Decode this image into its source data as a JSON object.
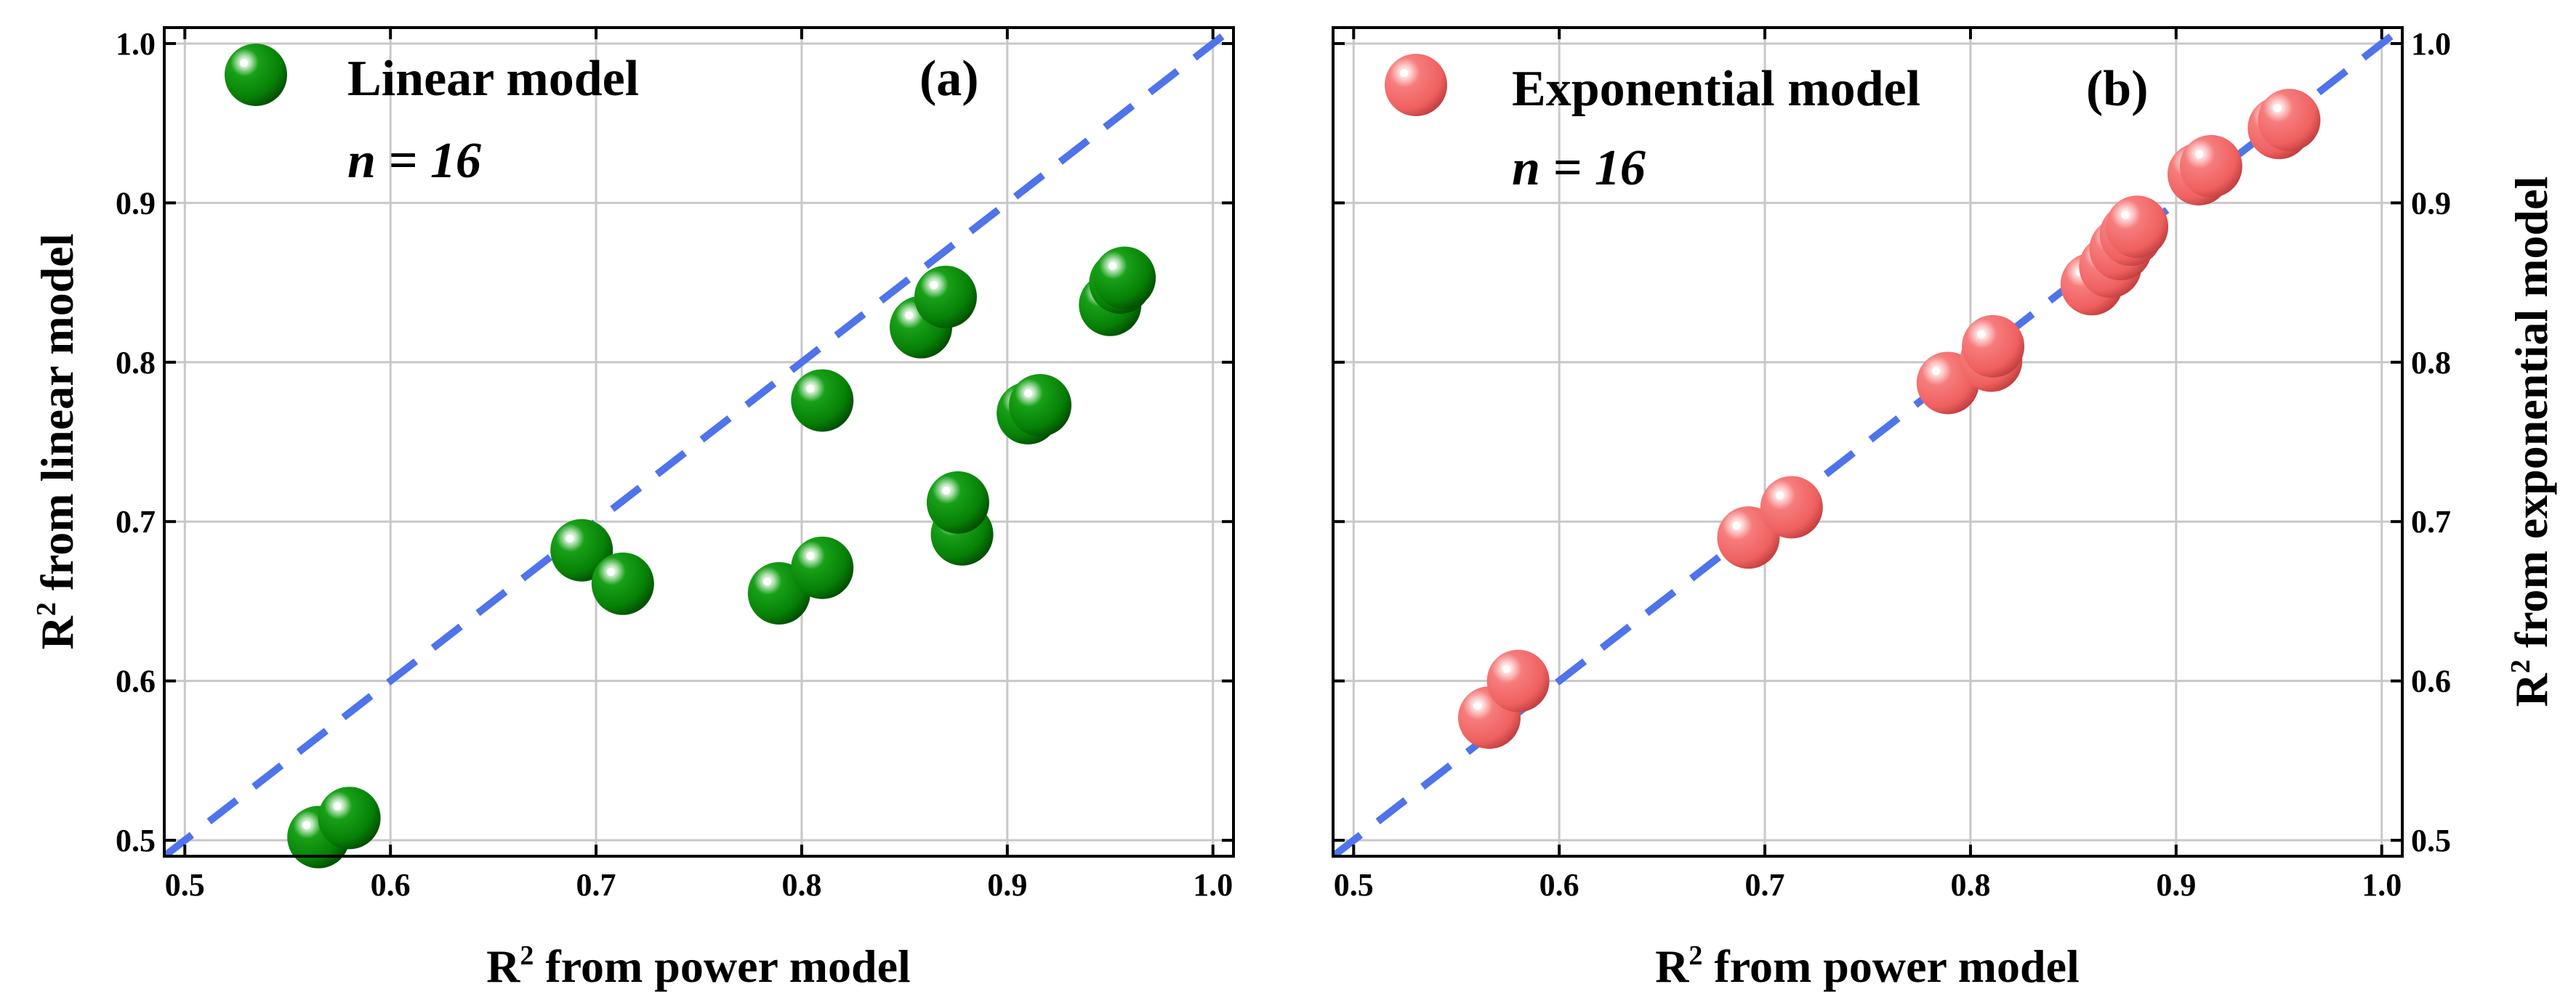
{
  "chart_data": [
    {
      "type": "scatter",
      "panel": "(a)",
      "legend": "Linear model",
      "annotation_prefix": "n = ",
      "n": "16",
      "xlabel": "from power model",
      "ylabel": "from linear model",
      "axis_prefix": "R",
      "axis_superscript": "2",
      "xlim": [
        0.49,
        1.01
      ],
      "ylim": [
        0.49,
        1.01
      ],
      "xticks": [
        "0.5",
        "0.6",
        "0.7",
        "0.8",
        "0.9",
        "1.0"
      ],
      "yticks": [
        "0.5",
        "0.6",
        "0.7",
        "0.8",
        "0.9",
        "1.0"
      ],
      "grid": true,
      "reference_line": "1:1",
      "marker_color": "#0a8a0a",
      "points": [
        {
          "x": 0.565,
          "y": 0.502
        },
        {
          "x": 0.58,
          "y": 0.514
        },
        {
          "x": 0.693,
          "y": 0.682
        },
        {
          "x": 0.713,
          "y": 0.661
        },
        {
          "x": 0.789,
          "y": 0.655
        },
        {
          "x": 0.81,
          "y": 0.671
        },
        {
          "x": 0.81,
          "y": 0.776
        },
        {
          "x": 0.858,
          "y": 0.822
        },
        {
          "x": 0.87,
          "y": 0.841
        },
        {
          "x": 0.878,
          "y": 0.692
        },
        {
          "x": 0.876,
          "y": 0.712
        },
        {
          "x": 0.91,
          "y": 0.768
        },
        {
          "x": 0.916,
          "y": 0.773
        },
        {
          "x": 0.95,
          "y": 0.836
        },
        {
          "x": 0.955,
          "y": 0.85
        },
        {
          "x": 0.957,
          "y": 0.853
        }
      ]
    },
    {
      "type": "scatter",
      "panel": "(b)",
      "legend": "Exponential model",
      "annotation_prefix": "n = ",
      "n": "16",
      "xlabel": "from power model",
      "ylabel": "from exponential model",
      "axis_prefix": "R",
      "axis_superscript": "2",
      "xlim": [
        0.49,
        1.01
      ],
      "ylim": [
        0.49,
        1.01
      ],
      "xticks": [
        "0.5",
        "0.6",
        "0.7",
        "0.8",
        "0.9",
        "1.0"
      ],
      "yticks": [
        "0.5",
        "0.6",
        "0.7",
        "0.8",
        "0.9",
        "1.0"
      ],
      "grid": true,
      "reference_line": "1:1",
      "marker_color": "#f06868",
      "points": [
        {
          "x": 0.566,
          "y": 0.577
        },
        {
          "x": 0.58,
          "y": 0.6
        },
        {
          "x": 0.692,
          "y": 0.69
        },
        {
          "x": 0.713,
          "y": 0.709
        },
        {
          "x": 0.789,
          "y": 0.787
        },
        {
          "x": 0.81,
          "y": 0.801
        },
        {
          "x": 0.811,
          "y": 0.81
        },
        {
          "x": 0.859,
          "y": 0.849
        },
        {
          "x": 0.868,
          "y": 0.86
        },
        {
          "x": 0.873,
          "y": 0.871
        },
        {
          "x": 0.878,
          "y": 0.88
        },
        {
          "x": 0.881,
          "y": 0.885
        },
        {
          "x": 0.911,
          "y": 0.918
        },
        {
          "x": 0.917,
          "y": 0.923
        },
        {
          "x": 0.95,
          "y": 0.947
        },
        {
          "x": 0.955,
          "y": 0.952
        }
      ]
    }
  ]
}
